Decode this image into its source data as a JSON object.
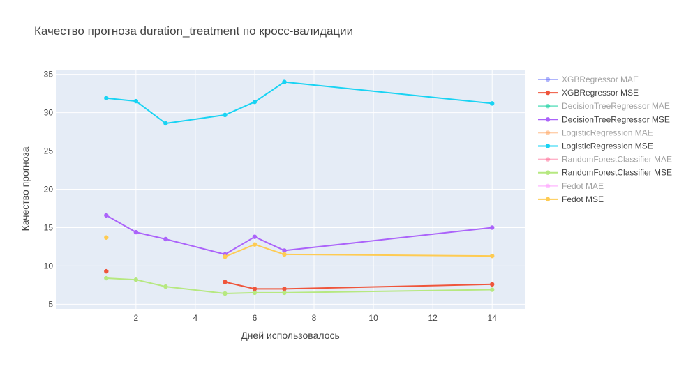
{
  "chart_data": {
    "type": "line",
    "title": "Качество прогноза duration_treatment по кросс-валидации",
    "xlabel": "Дней использовалось",
    "ylabel": "Качество прогноза",
    "xlim": [
      -0.7,
      15.1
    ],
    "ylim": [
      4.4,
      35.6
    ],
    "xticks": [
      2,
      4,
      6,
      8,
      10,
      12,
      14
    ],
    "yticks": [
      5,
      10,
      15,
      20,
      25,
      30,
      35
    ],
    "grid": true,
    "legend_position": "right",
    "series": [
      {
        "name": "XGBRegressor MAE",
        "color": "#636efa",
        "visible": false,
        "points": []
      },
      {
        "name": "XGBRegressor MSE",
        "color": "#ef553b",
        "visible": true,
        "points": [
          [
            1,
            9.3
          ],
          [
            5,
            7.9
          ],
          [
            6,
            7.0
          ],
          [
            7,
            7.0
          ],
          [
            14,
            7.6
          ]
        ],
        "segments": [
          [
            5,
            6,
            7,
            14
          ]
        ]
      },
      {
        "name": "DecisionTreeRegressor MAE",
        "color": "#00cc96",
        "visible": false,
        "points": []
      },
      {
        "name": "DecisionTreeRegressor MSE",
        "color": "#ab63fa",
        "visible": true,
        "points": [
          [
            1,
            16.6
          ],
          [
            2,
            14.4
          ],
          [
            3,
            13.5
          ],
          [
            5,
            11.5
          ],
          [
            6,
            13.8
          ],
          [
            7,
            12.0
          ],
          [
            14,
            15.0
          ]
        ],
        "segments": [
          [
            1,
            2,
            3,
            5,
            6,
            7,
            14
          ]
        ]
      },
      {
        "name": "LogisticRegression MAE",
        "color": "#ffa15a",
        "visible": false,
        "points": []
      },
      {
        "name": "LogisticRegression MSE",
        "color": "#19d3f3",
        "visible": true,
        "points": [
          [
            1,
            31.9
          ],
          [
            2,
            31.5
          ],
          [
            3,
            28.6
          ],
          [
            5,
            29.7
          ],
          [
            6,
            31.4
          ],
          [
            7,
            34.0
          ],
          [
            14,
            31.2
          ]
        ],
        "segments": [
          [
            1,
            2,
            3,
            5,
            6,
            7,
            14
          ]
        ]
      },
      {
        "name": "RandomForestClassifier MAE",
        "color": "#ff6692",
        "visible": false,
        "points": []
      },
      {
        "name": "RandomForestClassifier MSE",
        "color": "#b6e880",
        "visible": true,
        "points": [
          [
            1,
            8.4
          ],
          [
            2,
            8.2
          ],
          [
            3,
            7.3
          ],
          [
            5,
            6.4
          ],
          [
            6,
            6.5
          ],
          [
            7,
            6.5
          ],
          [
            14,
            6.9
          ]
        ],
        "segments": [
          [
            1,
            2,
            3,
            5,
            6,
            7,
            14
          ]
        ]
      },
      {
        "name": "Fedot MAE",
        "color": "#ff97ff",
        "visible": false,
        "points": []
      },
      {
        "name": "Fedot MSE",
        "color": "#fecb52",
        "visible": true,
        "points": [
          [
            1,
            13.7
          ],
          [
            5,
            11.2
          ],
          [
            6,
            12.8
          ],
          [
            7,
            11.5
          ],
          [
            14,
            11.3
          ]
        ],
        "segments": [
          [
            5,
            6,
            7,
            14
          ]
        ]
      }
    ]
  }
}
